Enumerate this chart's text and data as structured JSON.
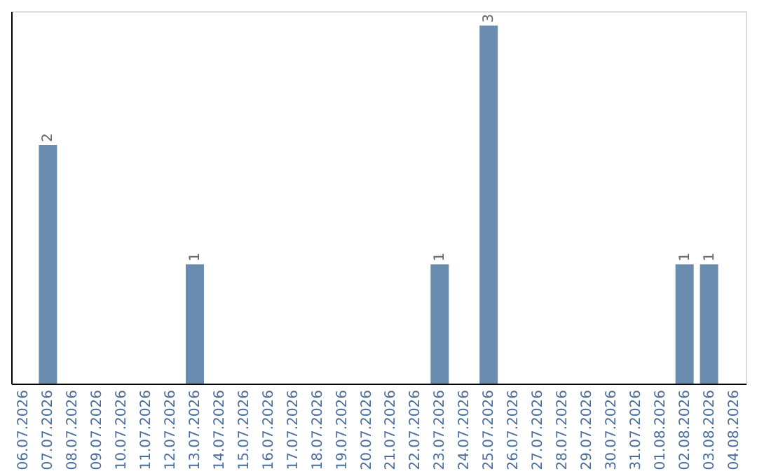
{
  "chart_data": {
    "type": "bar",
    "categories": [
      "06.07.2026",
      "07.07.2026",
      "08.07.2026",
      "09.07.2026",
      "10.07.2026",
      "11.07.2026",
      "12.07.2026",
      "13.07.2026",
      "14.07.2026",
      "15.07.2026",
      "16.07.2026",
      "17.07.2026",
      "18.07.2026",
      "19.07.2026",
      "20.07.2026",
      "21.07.2026",
      "22.07.2026",
      "23.07.2026",
      "24.07.2026",
      "25.07.2026",
      "26.07.2026",
      "27.07.2026",
      "28.07.2026",
      "29.07.2026",
      "30.07.2026",
      "31.07.2026",
      "01.08.2026",
      "02.08.2026",
      "03.08.2026",
      "04.08.2026"
    ],
    "values": [
      null,
      2,
      null,
      null,
      null,
      null,
      null,
      1,
      null,
      null,
      null,
      null,
      null,
      null,
      null,
      null,
      null,
      1,
      null,
      3,
      null,
      null,
      null,
      null,
      null,
      null,
      null,
      1,
      1,
      null
    ],
    "color": "#6a8caf",
    "data_labels": true,
    "grid": false,
    "tick_labels": "x"
  }
}
